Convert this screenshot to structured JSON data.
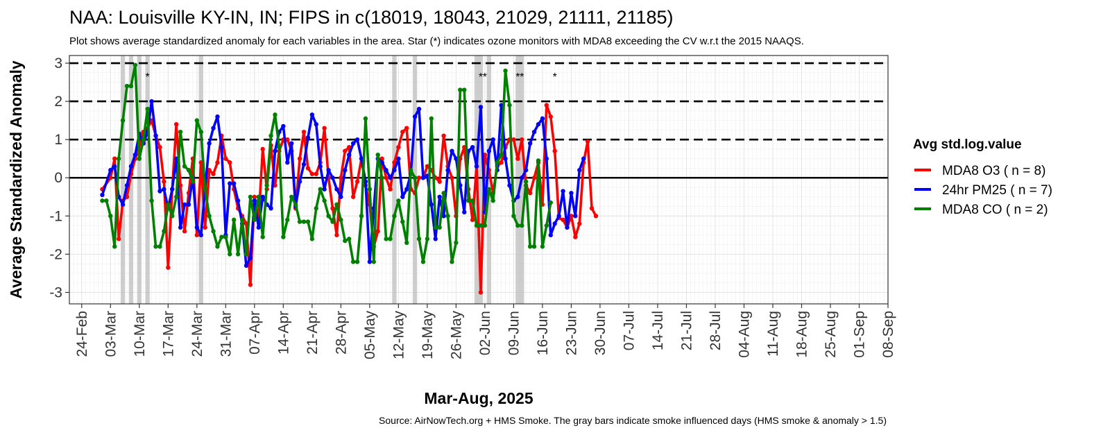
{
  "chart_data": {
    "type": "line",
    "title": "NAA: Louisville KY-IN, IN; FIPS in c(18019, 18043, 21029, 21111, 21185)",
    "subtitle": "Plot shows average standardized anomaly for each variables in the area. Star (*) indicates ozone monitors with MDA8 exceeding the CV w.r.t the 2015 NAAQS.",
    "xlabel": "Mar-Aug, 2025",
    "ylabel": "Average Standardized Anomaly",
    "caption": "Source: AirNowTech.org + HMS Smoke. The gray bars indicate smoke influenced days (HMS smoke & anomaly > 1.5)",
    "legend_title": "Avg std.log.value",
    "legend_position": "right",
    "grid": true,
    "xlim": [
      "2025-02-21",
      "2025-09-08"
    ],
    "ylim": [
      -3.3,
      3.2
    ],
    "x_ticks": [
      "2025-02-24",
      "2025-03-03",
      "2025-03-10",
      "2025-03-17",
      "2025-03-24",
      "2025-03-31",
      "2025-04-07",
      "2025-04-14",
      "2025-04-21",
      "2025-04-28",
      "2025-05-05",
      "2025-05-12",
      "2025-05-19",
      "2025-05-26",
      "2025-06-02",
      "2025-06-09",
      "2025-06-16",
      "2025-06-23",
      "2025-06-30",
      "2025-07-07",
      "2025-07-14",
      "2025-07-21",
      "2025-07-28",
      "2025-08-04",
      "2025-08-11",
      "2025-08-18",
      "2025-08-25",
      "2025-09-01",
      "2025-09-08"
    ],
    "x_tick_labels": [
      "24-Feb",
      "03-Mar",
      "10-Mar",
      "17-Mar",
      "24-Mar",
      "31-Mar",
      "07-Apr",
      "14-Apr",
      "21-Apr",
      "28-Apr",
      "05-May",
      "12-May",
      "19-May",
      "26-May",
      "02-Jun",
      "09-Jun",
      "16-Jun",
      "23-Jun",
      "30-Jun",
      "07-Jul",
      "14-Jul",
      "21-Jul",
      "28-Jul",
      "04-Aug",
      "11-Aug",
      "18-Aug",
      "25-Aug",
      "01-Sep",
      "08-Sep"
    ],
    "y_ticks": [
      -3,
      -2,
      -1,
      0,
      1,
      2,
      3
    ],
    "reference_lines": {
      "dashed": [
        1,
        2,
        3
      ],
      "solid": [
        0
      ]
    },
    "start_date": "2025-03-01",
    "smoke_days": [
      "2025-03-06",
      "2025-03-08",
      "2025-03-10",
      "2025-03-12",
      "2025-03-25",
      "2025-05-11",
      "2025-05-16",
      "2025-05-31",
      "2025-06-01",
      "2025-06-03",
      "2025-06-10",
      "2025-06-11"
    ],
    "star_days": [
      "2025-03-12",
      "2025-06-01",
      "2025-06-02",
      "2025-06-10",
      "2025-06-11",
      "2025-06-19"
    ],
    "star_y": 2.55,
    "series": [
      {
        "name": "MDA8 O3 ( n = 8)",
        "color": "#ff0000",
        "values": [
          -0.3,
          0.0,
          0.5,
          -1.6,
          -0.6,
          -0.5,
          0.1,
          0.5,
          0.8,
          1.2,
          1.3,
          1.5,
          1.1,
          0.8,
          -0.1,
          -2.35,
          -0.3,
          1.4,
          -0.2,
          -1.4,
          -0.4,
          0.5,
          -1.5,
          0.4,
          -1.3,
          0.2,
          0.1,
          0.4,
          1.1,
          0.5,
          0.4,
          -0.3,
          -0.8,
          -1.0,
          -1.2,
          -2.8,
          -0.5,
          -1.1,
          0.75,
          -0.3,
          0.85,
          -0.2,
          0.7,
          1.0,
          1.0,
          0.7,
          -0.8,
          0.5,
          1.2,
          0.25,
          0.1,
          0.1,
          0.4,
          1.3,
          0.0,
          -0.8,
          -1.5,
          0.0,
          0.7,
          0.8,
          -0.5,
          -0.1,
          0.5,
          -0.2,
          -0.7,
          -1.8,
          -1.4,
          0.5,
          0.0,
          -0.3,
          0.4,
          0.8,
          1.2,
          1.3,
          -0.3,
          -0.4,
          0.0,
          0.0,
          0.3,
          0.2,
          0.0,
          -0.1,
          1.1,
          0.3,
          0.0,
          -1.0,
          0.5,
          0.8,
          -0.3,
          -1.1,
          0.3,
          -3.0,
          0.6,
          0.2,
          -0.4,
          0.3,
          0.4,
          0.8,
          1.0,
          1.0,
          0.5,
          1.0,
          -0.2,
          -0.4,
          0.0,
          0.4,
          -0.7,
          1.9,
          1.6,
          0.7,
          -1.05,
          -1.1,
          -1.3,
          -1.0,
          -1.55,
          -1.2,
          0.4,
          0.95,
          -0.8,
          -1.0
        ],
        "gaps": [
          1
        ]
      },
      {
        "name": "24hr PM25 ( n = 7)",
        "color": "#0000ff",
        "values": [
          -0.45,
          0.2,
          0.3,
          -0.5,
          -0.7,
          -0.2,
          0.3,
          0.6,
          1.15,
          0.9,
          1.2,
          2.0,
          1.1,
          -0.35,
          -0.3,
          -0.8,
          -0.3,
          0.5,
          -1.3,
          -0.7,
          -0.7,
          0.0,
          -1.3,
          -1.5,
          -0.3,
          0.9,
          1.3,
          1.6,
          0.8,
          -1.5,
          -0.15,
          -0.15,
          -0.6,
          -1.2,
          -2.3,
          -2.1,
          -0.6,
          -1.3,
          -0.5,
          -0.7,
          -0.8,
          0.7,
          1.2,
          1.35,
          0.4,
          0.9,
          -0.75,
          -0.1,
          0.35,
          1.05,
          1.65,
          1.4,
          0.3,
          -0.3,
          0.2,
          0.0,
          -0.3,
          -0.5,
          0.2,
          0.6,
          0.9,
          1.0,
          0.5,
          -0.1,
          -2.2,
          -0.8,
          0.5,
          0.4,
          0.2,
          0.0,
          0.2,
          0.5,
          -0.5,
          -0.3,
          0.1,
          1.6,
          1.8,
          0.0,
          0.05,
          -0.7,
          -1.6,
          -0.5,
          -1.0,
          0.2,
          0.7,
          0.5,
          -0.2,
          -0.9,
          0.7,
          0.8,
          0.3,
          1.85,
          -0.9,
          0.7,
          1.0,
          0.2,
          1.9,
          0.5,
          -0.2,
          -0.6,
          -0.5,
          0.0,
          0.2,
          0.9,
          1.2,
          1.4,
          1.55,
          0.5,
          -1.5,
          -1.2,
          -1.0,
          -0.35,
          -1.3,
          -0.4,
          -1.0,
          0.2,
          0.5
        ],
        "gaps": [
          1
        ]
      },
      {
        "name": "MDA8 CO ( n = 2)",
        "color": "#008000",
        "values": [
          -0.6,
          -0.6,
          -1.0,
          -1.8,
          0.5,
          1.5,
          2.4,
          2.4,
          2.95,
          0.5,
          1.0,
          1.8,
          -0.6,
          -1.8,
          -1.8,
          -1.4,
          -0.7,
          -1.0,
          -0.5,
          1.2,
          0.3,
          0.2,
          -0.1,
          1.5,
          1.2,
          -0.3,
          -1.0,
          -1.4,
          -1.8,
          -1.55,
          -1.55,
          -2.0,
          -1.1,
          -2.0,
          -1.1,
          -2.0,
          -0.5,
          -1.1,
          -0.5,
          -1.55,
          -0.2,
          1.1,
          1.65,
          0.8,
          -1.55,
          -1.1,
          -0.5,
          -0.7,
          -1.15,
          -1.15,
          -1.15,
          -1.6,
          -0.8,
          -0.3,
          -0.6,
          -1.0,
          -1.15,
          -0.7,
          -1.1,
          -1.65,
          -1.6,
          -2.2,
          -2.2,
          -1.0,
          1.55,
          -0.3,
          -2.2,
          0.6,
          0.0,
          -1.6,
          -1.6,
          -1.0,
          -0.6,
          -1.15,
          -1.7,
          0.2,
          0.0,
          -1.6,
          -2.2,
          -1.6,
          1.55,
          -1.3,
          -1.3,
          -0.4,
          -1.0,
          -2.2,
          -1.7,
          2.3,
          2.3,
          -0.6,
          -0.6,
          -1.25,
          -1.25,
          -1.25,
          -0.3,
          -0.6,
          0.4,
          0.6,
          2.8,
          1.9,
          -1.0,
          -1.25,
          -1.25,
          -0.1,
          -1.8,
          -1.8,
          0.45,
          -1.8,
          -1.25,
          -0.65
        ],
        "gaps": []
      }
    ]
  }
}
